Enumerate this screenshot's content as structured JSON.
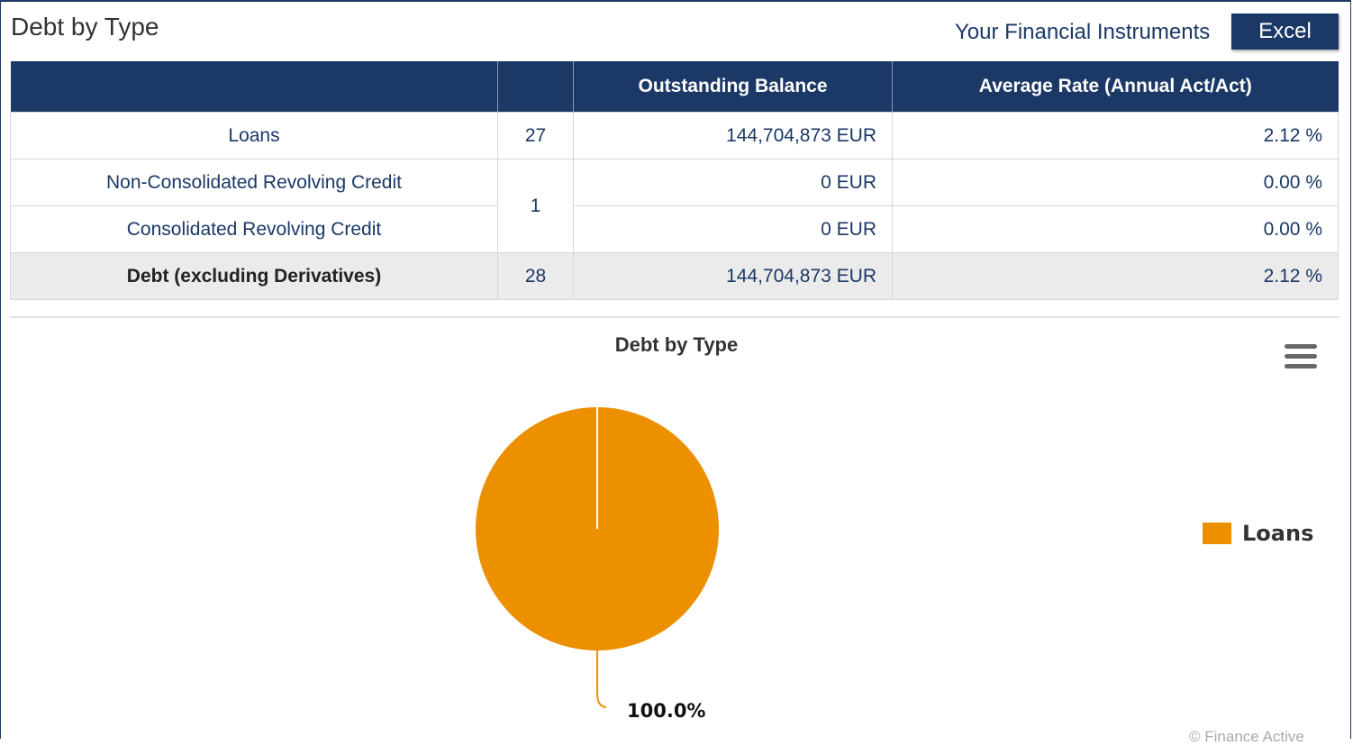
{
  "header": {
    "title": "Debt by Type",
    "link_label": "Your Financial Instruments",
    "excel_label": "Excel"
  },
  "table": {
    "columns": [
      "",
      "",
      "Outstanding Balance",
      "Average Rate (Annual Act/Act)"
    ],
    "rows": [
      {
        "label": "Loans",
        "count": "27",
        "balance": "144,704,873 EUR",
        "rate": "2.12 %"
      },
      {
        "label": "Non-Consolidated Revolving Credit",
        "count": "1",
        "balance": "0 EUR",
        "rate": "0.00 %"
      },
      {
        "label": "Consolidated Revolving Credit",
        "balance": "0 EUR",
        "rate": "0.00 %"
      }
    ],
    "total": {
      "label": "Debt (excluding Derivatives)",
      "count": "28",
      "balance": "144,704,873 EUR",
      "rate": "2.12 %"
    }
  },
  "chart_data": {
    "type": "pie",
    "title": "Debt by Type",
    "slices": [
      {
        "name": "Loans",
        "value": 100.0,
        "label": "100.0%",
        "color": "#ec9000"
      }
    ],
    "legend_position": "right"
  },
  "credits": "© Finance Active"
}
